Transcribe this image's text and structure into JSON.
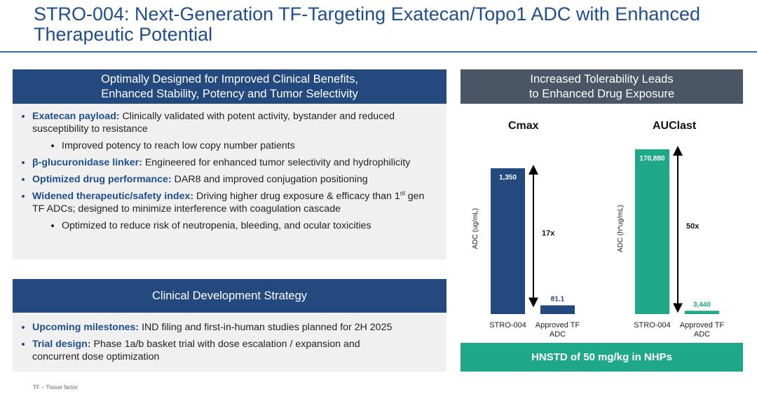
{
  "header": {
    "title": [
      "STRO-004: Next-Generation TF-Targeting Exatecan/Topo1 ADC with Enhanced",
      "Therapeutic Potential"
    ]
  },
  "left_panels": [
    {
      "heading": [
        "Optimally Designed for Improved Clinical Benefits,",
        "Enhanced Stability, Potency and Tumor Selectivity"
      ],
      "bullets": [
        {
          "bold": "Exatecan payload:",
          "text": "Clinically validated with potent activity, bystander and reduced susceptibility to resistance",
          "sub": [
            "Improved potency to reach low copy number patients"
          ]
        },
        {
          "bold": "β-glucuronidase linker:",
          "text": "Engineered for enhanced tumor selectivity and hydrophilicity"
        },
        {
          "bold": "Optimized drug performance:",
          "text": "DAR8 and improved conjugation positioning"
        },
        {
          "bold": "Widened therapeutic/safety index:",
          "text": "Driving higher drug exposure & efficacy than 1",
          "sup": "st",
          "text_after": " gen TF ADCs; designed to minimize interference with coagulation cascade",
          "sub": [
            "Optimized to reduce risk of neutropenia, bleeding, and ocular toxicities"
          ]
        }
      ]
    },
    {
      "heading": [
        "Clinical Development Strategy"
      ],
      "bullets": [
        {
          "bold": "Upcoming milestones:",
          "text": "IND filing and first-in-human studies planned for 2H 2025"
        },
        {
          "bold": "Trial design:",
          "text": "Phase 1a/b basket trial with dose escalation / expansion and concurrent dose optimization"
        }
      ]
    }
  ],
  "right_panel": {
    "heading": [
      "Increased Tolerability Leads",
      "to Enhanced Drug Exposure"
    ],
    "banner": "HNSTD of 50 mg/kg in NHPs"
  },
  "footnote": "TF – Tissue factor",
  "chart_data": [
    {
      "type": "bar",
      "title": "Cmax",
      "y_label": "ADC (ug/mL)",
      "categories": [
        "STRO-004",
        "Approved TF ADC"
      ],
      "values": [
        1350,
        81.1
      ],
      "value_labels": [
        "1,350",
        "81.1"
      ],
      "color": "#24497f",
      "annotation": "17x"
    },
    {
      "type": "bar",
      "title": "AUClast",
      "y_label": "ADC (h*ug/mL)",
      "categories": [
        "STRO-004",
        "Approved TF ADC"
      ],
      "values": [
        170880,
        3440
      ],
      "value_labels": [
        "170,880",
        "3,440"
      ],
      "color": "#1fa888",
      "annotation": "50x"
    }
  ]
}
